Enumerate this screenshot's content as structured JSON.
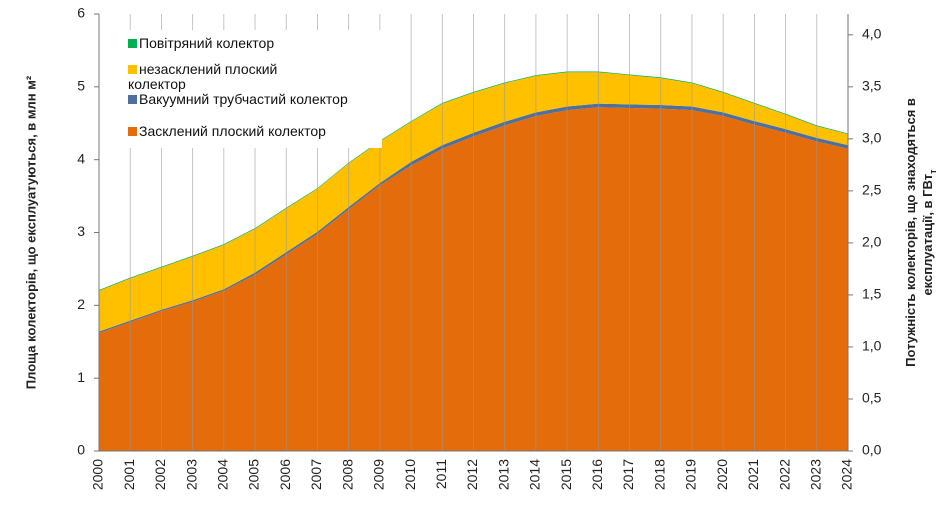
{
  "chart_data": {
    "type": "stacked_area",
    "categories": [
      "2000",
      "2001",
      "2002",
      "2003",
      "2004",
      "2005",
      "2006",
      "2007",
      "2008",
      "2009",
      "2010",
      "2011",
      "2012",
      "2013",
      "2014",
      "2015",
      "2016",
      "2017",
      "2018",
      "2019",
      "2020",
      "2021",
      "2022",
      "2023",
      "2024"
    ],
    "series": [
      {
        "name": "Засклений плоский колектор",
        "color": "#e46c0a",
        "values": [
          1.62,
          1.77,
          1.92,
          2.05,
          2.2,
          2.42,
          2.7,
          2.98,
          3.32,
          3.65,
          3.92,
          4.15,
          4.32,
          4.47,
          4.6,
          4.68,
          4.72,
          4.71,
          4.7,
          4.68,
          4.6,
          4.48,
          4.37,
          4.25,
          4.15
        ]
      },
      {
        "name": "Вакуумний трубчастий колектор",
        "color": "#4f6f9f",
        "values": [
          0.02,
          0.02,
          0.02,
          0.02,
          0.02,
          0.03,
          0.03,
          0.03,
          0.03,
          0.03,
          0.05,
          0.05,
          0.05,
          0.05,
          0.05,
          0.05,
          0.05,
          0.05,
          0.05,
          0.05,
          0.05,
          0.05,
          0.05,
          0.05,
          0.05
        ]
      },
      {
        "name": "незасклений плоский колектор",
        "color": "#ffc000",
        "values": [
          0.56,
          0.58,
          0.58,
          0.6,
          0.61,
          0.6,
          0.6,
          0.59,
          0.6,
          0.57,
          0.55,
          0.57,
          0.55,
          0.53,
          0.5,
          0.47,
          0.43,
          0.4,
          0.37,
          0.32,
          0.27,
          0.24,
          0.2,
          0.16,
          0.15
        ]
      },
      {
        "name": "Повітряний колектор",
        "color": "#00b050",
        "values": [
          0.01,
          0.01,
          0.01,
          0.01,
          0.01,
          0.01,
          0.01,
          0.01,
          0.01,
          0.01,
          0.01,
          0.01,
          0.01,
          0.01,
          0.01,
          0.01,
          0.01,
          0.01,
          0.01,
          0.01,
          0.01,
          0.01,
          0.01,
          0.01,
          0.01
        ]
      }
    ],
    "y_label": "Площа колекторів, що експлуатуються, в млн м²",
    "y2_label": [
      "Потужність колекторів, що знаходяться в",
      "експлуатації, в ГВт"
    ],
    "y2_label_subscript": "т",
    "ylim": [
      0,
      6
    ],
    "yticks": [
      0,
      1,
      2,
      3,
      4,
      5,
      6
    ],
    "y2lim": [
      0,
      4.2
    ],
    "y2ticks": [
      {
        "value": 0,
        "label": "0,0"
      },
      {
        "value": 0.5,
        "label": "0,5"
      },
      {
        "value": 1,
        "label": "1,0"
      },
      {
        "value": 1.5,
        "label": "1,5"
      },
      {
        "value": 2,
        "label": "2,0"
      },
      {
        "value": 2.5,
        "label": "2,5"
      },
      {
        "value": 3,
        "label": "3,0"
      },
      {
        "value": 3.5,
        "label": "3,5"
      },
      {
        "value": 4,
        "label": "4,0"
      }
    ],
    "grid": "vertical",
    "legend": "upper left"
  }
}
